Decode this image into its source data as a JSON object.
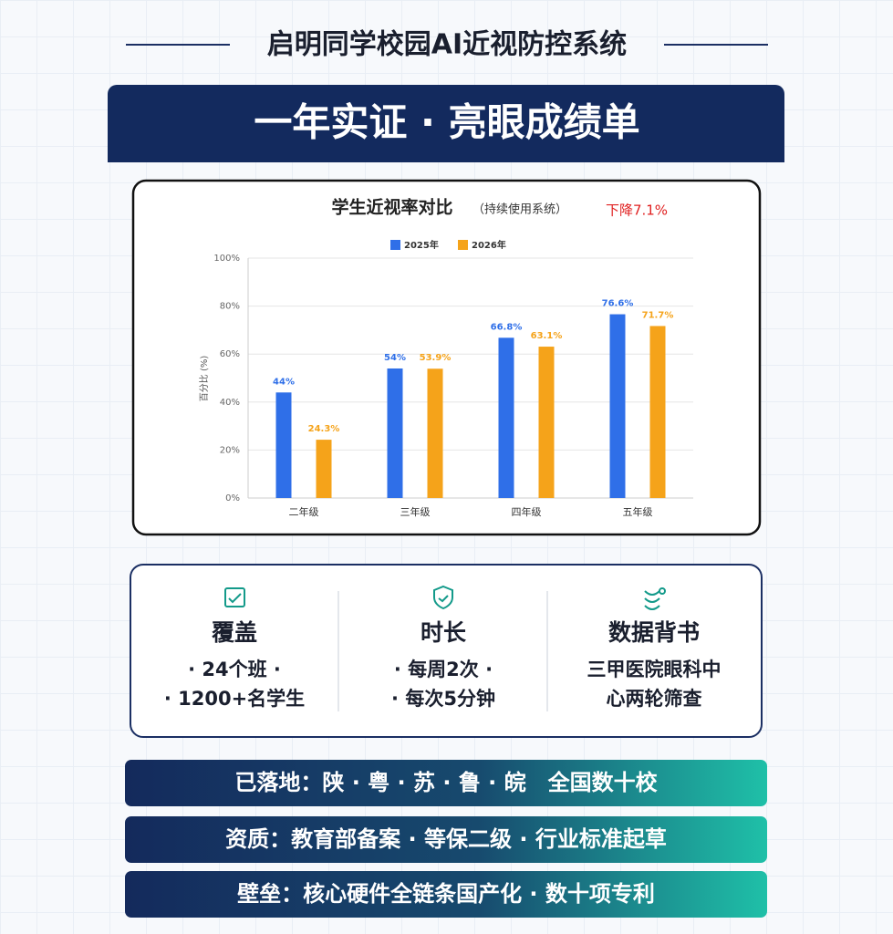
{
  "header": {
    "title": "启明同学校园AI近视防控系统",
    "banner": "一年实证 · 亮眼成绩单"
  },
  "chart_data": {
    "type": "bar",
    "title": "学生近视率对比",
    "subtitle": "（持续使用系统）",
    "annotation": "下降7.1%",
    "y_label": "百分比 (%)",
    "categories": [
      "二年级",
      "三年级",
      "四年级",
      "五年级"
    ],
    "series": [
      {
        "name": "2025年",
        "color": "#2f6fe8",
        "values": [
          44,
          54,
          66.8,
          76.6
        ],
        "value_labels": [
          "44%",
          "54%",
          "66.8%",
          "76.6%"
        ]
      },
      {
        "name": "2026年",
        "color": "#f5a31a",
        "values": [
          24.3,
          53.9,
          63.1,
          71.7
        ],
        "value_labels": [
          "24.3%",
          "53.9%",
          "63.1%",
          "71.7%"
        ]
      }
    ],
    "ylim": [
      0,
      100
    ],
    "yticks": [
      {
        "value": 0,
        "label": "0%"
      },
      {
        "value": 20,
        "label": "20%"
      },
      {
        "value": 40,
        "label": "40%"
      },
      {
        "value": 60,
        "label": "60%"
      },
      {
        "value": 80,
        "label": "80%"
      },
      {
        "value": 100,
        "label": "100%"
      }
    ],
    "grid": true,
    "legend": "top"
  },
  "stats": [
    {
      "title": "覆盖",
      "lines": [
        "· 24个班 ·",
        "· 1200+名学生"
      ]
    },
    {
      "title": "时长",
      "lines": [
        "· 每周2次 ·",
        "· 每次5分钟"
      ]
    },
    {
      "title": "数据背书",
      "lines": [
        "三甲医院眼科中",
        "心两轮筛查"
      ]
    }
  ],
  "strips": [
    "已落地：陕 · 粤 · 苏 · 鲁 · 皖　全国数十校",
    "资质：教育部备案 · 等保二级 · 行业标准起草",
    "壁垒：核心硬件全链条国产化 · 数十项专利"
  ]
}
